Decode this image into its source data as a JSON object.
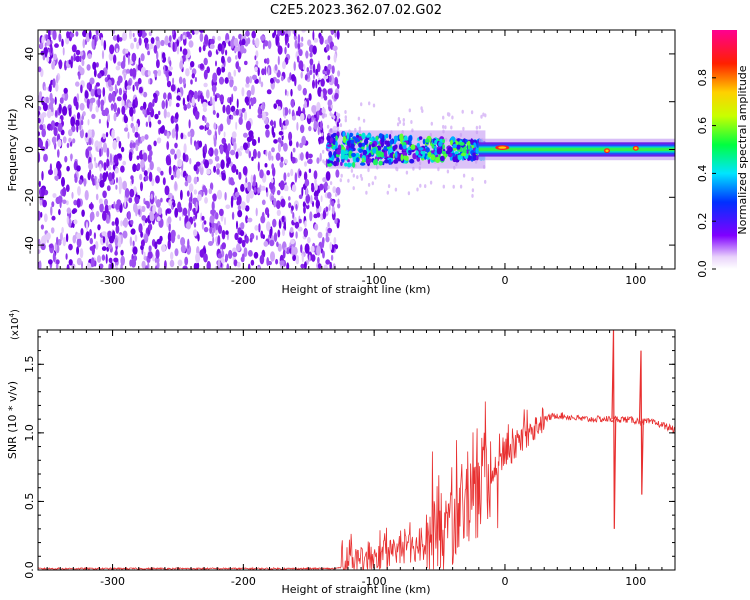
{
  "figure_title": "C2E5.2023.362.07.02.G02",
  "colors": {
    "snr_line": "#e83030",
    "spectro_purple": "#7a10e6",
    "spectro_light": "#d9b8f5"
  },
  "chart_data": [
    {
      "type": "heatmap",
      "title": "",
      "xlabel": "Height of straight line (km)",
      "ylabel": "Frequency (Hz)",
      "xlim": [
        -357,
        130
      ],
      "ylim": [
        -50,
        50
      ],
      "x_ticks": [
        -300,
        -200,
        -100,
        0,
        100
      ],
      "y_ticks": [
        -40,
        -20,
        0,
        20,
        40
      ],
      "colorbar": {
        "label": "Normalized spectral amplitude",
        "range": [
          0,
          1
        ],
        "ticks": [
          0.0,
          0.2,
          0.4,
          0.6,
          0.8
        ]
      },
      "regions": [
        {
          "x": [
            -357,
            -135
          ],
          "freq_spread": [
            -50,
            50
          ],
          "amplitude": 0.1
        },
        {
          "x": [
            -135,
            -15
          ],
          "freq_spread": [
            -8,
            8
          ],
          "amplitude": 0.4
        },
        {
          "x": [
            -15,
            130
          ],
          "freq_spread": [
            -2,
            2
          ],
          "amplitude": 0.45
        }
      ],
      "peaks": [
        {
          "x": -2,
          "y": 0.8,
          "amplitude": 0.9
        },
        {
          "x": 78,
          "y": -0.5,
          "amplitude": 0.85
        },
        {
          "x": 100,
          "y": 0.5,
          "amplitude": 0.85
        }
      ]
    },
    {
      "type": "line",
      "title": "",
      "xlabel": "Height of straight line (km)",
      "ylabel": "SNR (10 * v/v)",
      "y_multiplier": "(x10",
      "y_multiplier_exp": "4",
      "y_multiplier_close": ")",
      "xlim": [
        -357,
        130
      ],
      "ylim": [
        0,
        1.75
      ],
      "x_ticks": [
        -300,
        -200,
        -100,
        0,
        100
      ],
      "y_ticks": [
        0.0,
        0.5,
        1.0,
        1.5
      ],
      "series": [
        {
          "x": [
            -357,
            -300,
            -200,
            -130,
            -120,
            -100,
            -80,
            -60,
            -50,
            -40,
            -30,
            -20,
            -10,
            0,
            10,
            20,
            30,
            40,
            60,
            80,
            85,
            90,
            100,
            104,
            110,
            120,
            130
          ],
          "y": [
            0.01,
            0.01,
            0.01,
            0.01,
            0.03,
            0.08,
            0.15,
            0.18,
            0.25,
            0.35,
            0.5,
            0.6,
            0.72,
            0.82,
            0.93,
            1.02,
            1.1,
            1.13,
            1.1,
            1.1,
            1.1,
            1.1,
            1.09,
            1.08,
            1.08,
            1.06,
            1.02
          ]
        }
      ],
      "annotations": [
        {
          "x": 83,
          "y_max": 1.75,
          "y_min": 0.3
        },
        {
          "x": 104,
          "y_max": 1.6,
          "y_min": 0.55
        }
      ]
    }
  ]
}
